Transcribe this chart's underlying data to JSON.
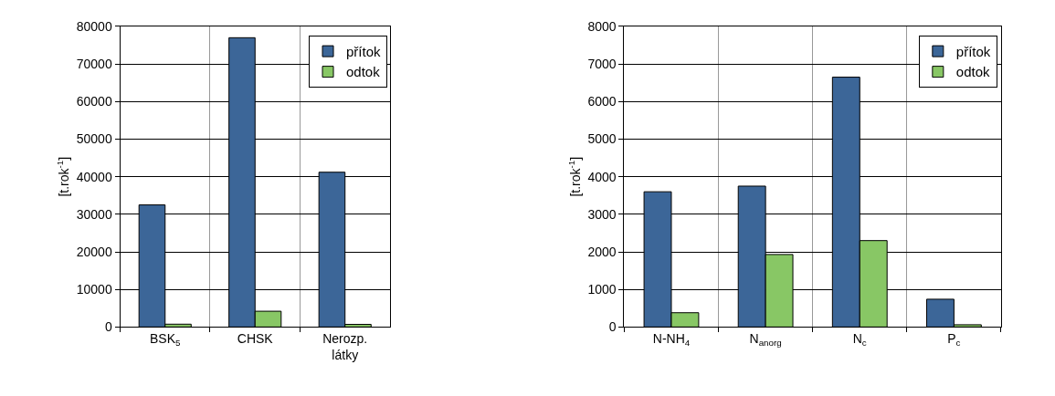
{
  "chart_data": [
    {
      "type": "bar",
      "ylabel": "[t.rok$^{-1}$]",
      "categories": [
        "BSK$_{5}$",
        "CHSK",
        "Nerozp.\nlátky"
      ],
      "series": [
        {
          "name": "přítok",
          "color": "#3c6698",
          "values": [
            32500,
            77000,
            41200
          ]
        },
        {
          "name": "odtok",
          "color": "#88c765",
          "values": [
            750,
            4200,
            700
          ]
        }
      ],
      "ylim": [
        0,
        80000
      ],
      "yticks": [
        0,
        10000,
        20000,
        30000,
        40000,
        50000,
        60000,
        70000,
        80000
      ],
      "grid": true,
      "legend": "top right"
    },
    {
      "type": "bar",
      "ylabel": "[t.rok$^{-1}$]",
      "categories": [
        "N-NH$_{4}$",
        "N$_{anorg}$",
        "N$_{c}$",
        "P$_{c}$"
      ],
      "series": [
        {
          "name": "přítok",
          "color": "#3c6698",
          "values": [
            3600,
            3750,
            6650,
            740
          ]
        },
        {
          "name": "odtok",
          "color": "#88c765",
          "values": [
            380,
            1930,
            2300,
            60
          ]
        }
      ],
      "ylim": [
        0,
        8000
      ],
      "yticks": [
        0,
        1000,
        2000,
        3000,
        4000,
        5000,
        6000,
        7000,
        8000
      ],
      "grid": true,
      "legend": "top right"
    }
  ]
}
